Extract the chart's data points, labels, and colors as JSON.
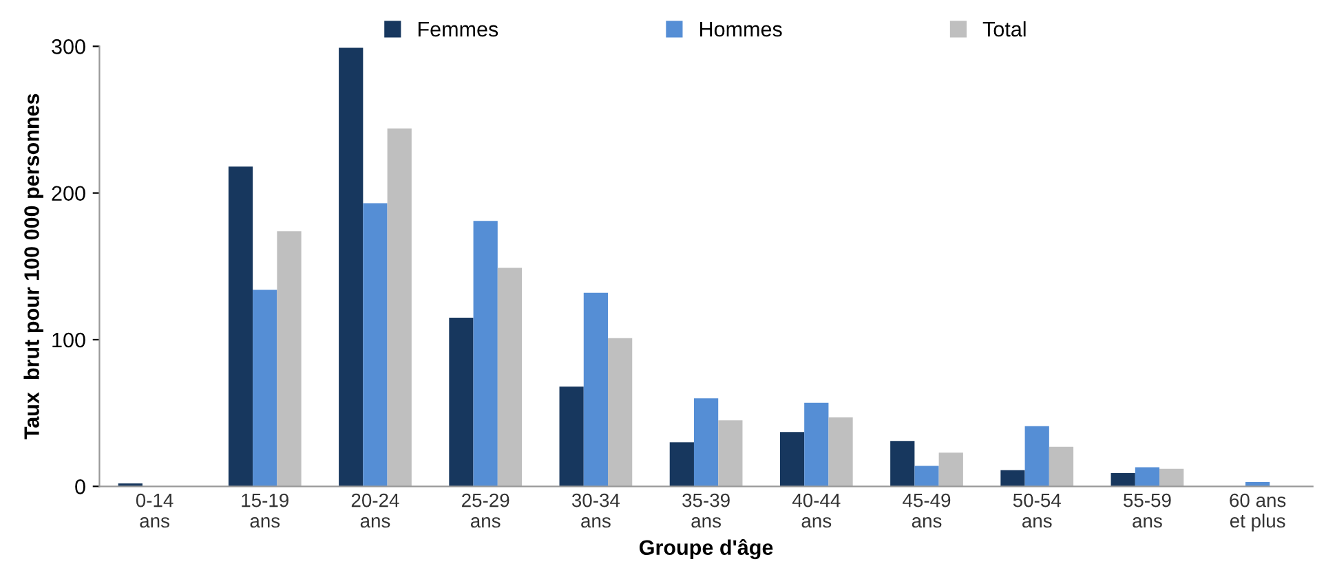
{
  "chart_data": {
    "type": "bar",
    "xlabel": "Groupe d'âge",
    "ylabel": "Taux  brut pour 100 000 personnes",
    "categories": [
      "0-14\nans",
      "15-19\nans",
      "20-24\nans",
      "25-29\nans",
      "30-34\nans",
      "35-39\nans",
      "40-44\nans",
      "45-49\nans",
      "50-54\nans",
      "55-59\nans",
      "60 ans\net plus"
    ],
    "series": [
      {
        "name": "Femmes",
        "color": "#17375e",
        "values": [
          2,
          218,
          299,
          115,
          68,
          30,
          37,
          31,
          11,
          9,
          0
        ]
      },
      {
        "name": "Hommes",
        "color": "#558ed5",
        "values": [
          0,
          134,
          193,
          181,
          132,
          60,
          57,
          14,
          41,
          13,
          3
        ]
      },
      {
        "name": "Total",
        "color": "#bfbfbf",
        "values": [
          null,
          174,
          244,
          149,
          101,
          45,
          47,
          23,
          27,
          12,
          null
        ]
      }
    ],
    "ylim": [
      0,
      300
    ],
    "yticks": [
      0,
      100,
      200,
      300
    ],
    "grid": false,
    "legend": "top"
  }
}
